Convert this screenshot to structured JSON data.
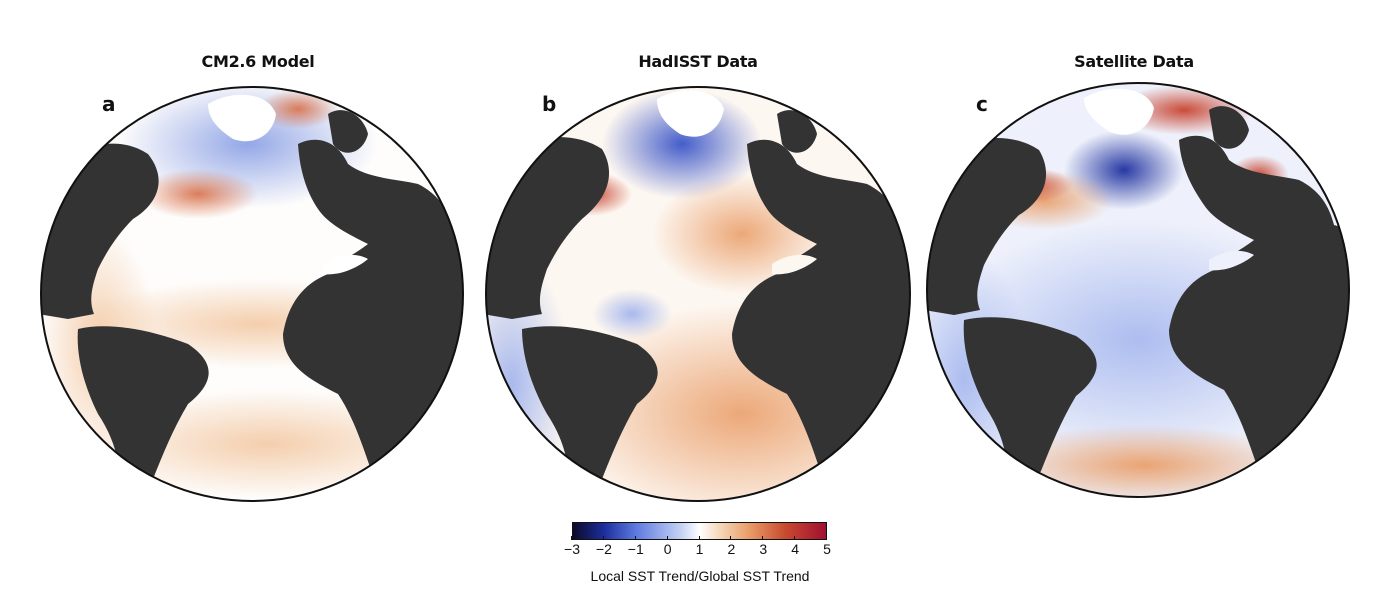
{
  "panels": [
    {
      "letter": "a",
      "title": "CM2.6 Model"
    },
    {
      "letter": "b",
      "title": "HadISST Data"
    },
    {
      "letter": "c",
      "title": "Satellite Data"
    }
  ],
  "colorbar": {
    "label": "Local SST Trend/Global SST Trend",
    "ticks": [
      "−3",
      "−2",
      "−1",
      "0",
      "1",
      "2",
      "3",
      "4",
      "5"
    ],
    "range": [
      -3,
      5
    ]
  },
  "colors": {
    "land": "#333333",
    "ice": "#ffffff",
    "neutral": "#ffffff",
    "warm": "#e8a070",
    "hot": "#c8432f",
    "cool": "#aebfee",
    "cold": "#2c46b8"
  }
}
